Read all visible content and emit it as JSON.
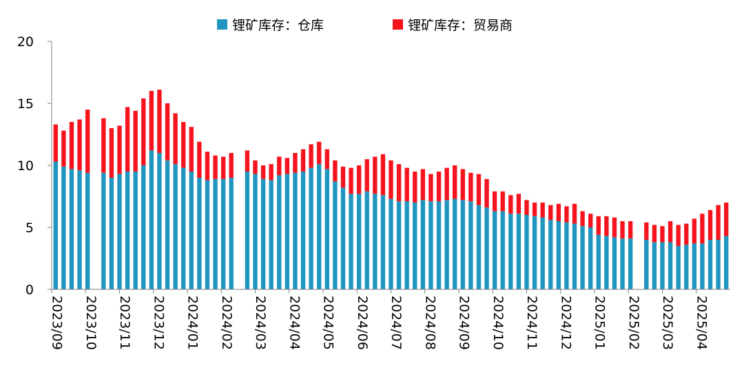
{
  "chart_data": {
    "type": "bar",
    "stacked": true,
    "ylim": [
      0,
      20
    ],
    "yticks": [
      "0",
      "5",
      "10",
      "15",
      "20"
    ],
    "x_tick_labels": [
      "2023/09",
      "2023/10",
      "2023/11",
      "2023/12",
      "2024/01",
      "2024/02",
      "2024/03",
      "2024/04",
      "2024/05",
      "2024/06",
      "2024/07",
      "2024/08",
      "2024/09",
      "2024/10",
      "2024/11",
      "2024/12",
      "2025/01",
      "2025/02",
      "2025/03",
      "2025/04"
    ],
    "legend_position": "top",
    "series": [
      {
        "name": "锂矿库存：仓库",
        "color": "#1f95bf",
        "values": [
          10.3,
          9.9,
          9.7,
          9.6,
          9.4,
          null,
          9.4,
          9.0,
          9.3,
          9.5,
          9.5,
          10.0,
          11.2,
          11.0,
          10.4,
          10.1,
          9.8,
          9.5,
          9.0,
          8.8,
          8.9,
          8.9,
          9.0,
          null,
          9.5,
          9.3,
          8.9,
          8.8,
          9.2,
          9.3,
          9.4,
          9.5,
          9.8,
          10.1,
          9.7,
          8.7,
          8.2,
          7.7,
          7.7,
          7.9,
          7.7,
          7.6,
          7.3,
          7.1,
          7.1,
          7.0,
          7.2,
          7.1,
          7.1,
          7.2,
          7.3,
          7.2,
          7.1,
          6.8,
          6.6,
          6.3,
          6.3,
          6.1,
          6.1,
          6.0,
          5.9,
          5.8,
          5.6,
          5.5,
          5.4,
          5.3,
          5.1,
          5.0,
          4.4,
          4.3,
          4.2,
          4.1,
          4.1,
          null,
          4.0,
          3.8,
          3.8,
          3.8,
          3.5,
          3.6,
          3.7,
          3.7,
          4.0,
          4.0,
          4.3
        ]
      },
      {
        "name": "锂矿库存：贸易商",
        "color": "#f5141e",
        "values": [
          3.0,
          2.9,
          3.8,
          4.1,
          5.1,
          null,
          4.4,
          4.0,
          3.9,
          5.2,
          4.9,
          5.4,
          4.8,
          5.1,
          4.6,
          4.1,
          3.7,
          3.6,
          2.9,
          2.3,
          1.9,
          1.8,
          2.0,
          null,
          1.7,
          1.1,
          1.1,
          1.3,
          1.5,
          1.3,
          1.6,
          1.8,
          1.9,
          1.8,
          1.6,
          1.7,
          1.7,
          2.1,
          2.3,
          2.6,
          3.0,
          3.3,
          3.1,
          3.0,
          2.7,
          2.5,
          2.5,
          2.2,
          2.4,
          2.6,
          2.7,
          2.5,
          2.3,
          2.5,
          2.3,
          1.6,
          1.6,
          1.5,
          1.6,
          1.2,
          1.1,
          1.2,
          1.2,
          1.4,
          1.3,
          1.6,
          1.2,
          1.1,
          1.5,
          1.6,
          1.6,
          1.4,
          1.4,
          null,
          1.4,
          1.4,
          1.3,
          1.7,
          1.7,
          1.7,
          2.0,
          2.4,
          2.4,
          2.8,
          2.7
        ]
      }
    ]
  }
}
